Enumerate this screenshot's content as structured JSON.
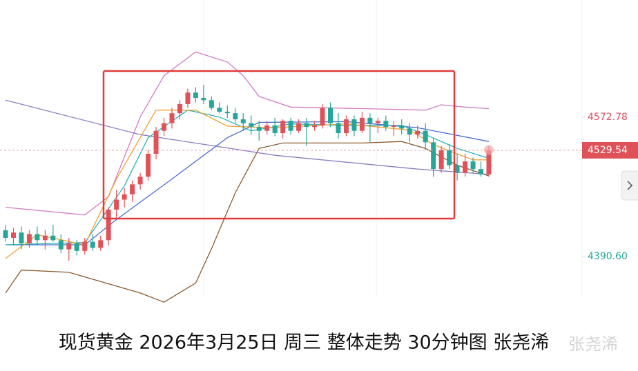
{
  "chart_data": {
    "type": "candlestick",
    "caption": "现货黄金 2026年3月25日 周三 整体走势 30分钟图 张尧浠",
    "watermark": "张尧浠",
    "up_color": "#e0525a",
    "down_color": "#26a69a",
    "ylim": [
      4241,
      4726
    ],
    "yticks": [
      4572.78,
      {
        "value": 4390.6,
        "label": "4390.60"
      }
    ],
    "ytick_colors": [
      "#e0525a",
      "#26a69a"
    ],
    "last_price": 4529.54,
    "open": [
      4425,
      4415,
      4422,
      4408,
      4420,
      4412,
      4418,
      4412,
      4400,
      4408,
      4398,
      4410,
      4402,
      4412,
      4452,
      4465,
      4472,
      4485,
      4495,
      4525,
      4555,
      4565,
      4578,
      4590,
      4605,
      4598,
      4595,
      4585,
      4580,
      4578,
      4570,
      4565,
      4560,
      4555,
      4562,
      4552,
      4568,
      4555,
      4565,
      4560,
      4562,
      4585,
      4565,
      4552,
      4570,
      4555,
      4572,
      4565,
      4568,
      4560,
      4562,
      4558,
      4550,
      4555,
      4540,
      4505,
      4530,
      4510,
      4500,
      4515,
      4505,
      4498
    ],
    "high": [
      4432,
      4428,
      4430,
      4425,
      4430,
      4425,
      4432,
      4420,
      4415,
      4412,
      4415,
      4420,
      4418,
      4455,
      4478,
      4480,
      4490,
      4500,
      4530,
      4560,
      4572,
      4585,
      4595,
      4610,
      4612,
      4615,
      4600,
      4592,
      4588,
      4585,
      4578,
      4575,
      4568,
      4568,
      4572,
      4570,
      4572,
      4570,
      4572,
      4568,
      4590,
      4592,
      4578,
      4575,
      4575,
      4580,
      4578,
      4572,
      4575,
      4568,
      4570,
      4565,
      4562,
      4565,
      4545,
      4535,
      4538,
      4525,
      4525,
      4520,
      4515,
      4535
    ],
    "low": [
      4410,
      4405,
      4400,
      4402,
      4405,
      4400,
      4410,
      4395,
      4385,
      4392,
      4393,
      4398,
      4398,
      4405,
      4440,
      4455,
      4462,
      4478,
      4490,
      4518,
      4548,
      4558,
      4570,
      4585,
      4592,
      4590,
      4582,
      4578,
      4572,
      4565,
      4555,
      4550,
      4542,
      4550,
      4548,
      4545,
      4550,
      4552,
      4535,
      4555,
      4558,
      4560,
      4545,
      4548,
      4548,
      4552,
      4540,
      4552,
      4555,
      4548,
      4550,
      4540,
      4545,
      4530,
      4495,
      4500,
      4505,
      4490,
      4495,
      4500,
      4495,
      4495
    ],
    "close": [
      4415,
      4422,
      4408,
      4420,
      4412,
      4418,
      4412,
      4400,
      4408,
      4398,
      4410,
      4402,
      4412,
      4452,
      4465,
      4472,
      4485,
      4495,
      4525,
      4555,
      4565,
      4578,
      4590,
      4605,
      4598,
      4595,
      4585,
      4580,
      4578,
      4570,
      4565,
      4560,
      4555,
      4562,
      4552,
      4568,
      4555,
      4565,
      4560,
      4562,
      4585,
      4565,
      4552,
      4570,
      4555,
      4572,
      4565,
      4568,
      4560,
      4562,
      4558,
      4550,
      4555,
      4540,
      4505,
      4530,
      4510,
      4500,
      4515,
      4505,
      4498,
      4530
    ],
    "series": [
      {
        "color": "#d27ac8",
        "x": [
          0,
          10,
          13,
          17,
          20,
          24,
          28,
          30,
          32,
          36,
          45,
          53,
          55,
          58,
          61
        ],
        "values": [
          4455,
          4445,
          4469,
          4573,
          4627,
          4658,
          4645,
          4627,
          4600,
          4586,
          4584,
          4582,
          4589,
          4586,
          4584
        ]
      },
      {
        "color": "#8b5a2b",
        "x": [
          0,
          2,
          8,
          17,
          20,
          24,
          26,
          29,
          32,
          35,
          45,
          50,
          53,
          57,
          61
        ],
        "values": [
          4343,
          4373,
          4370,
          4343,
          4331,
          4356,
          4401,
          4474,
          4532,
          4539,
          4539,
          4541,
          4532,
          4510,
          4496
        ]
      },
      {
        "color": "#8e7cc3",
        "x": [
          0,
          17,
          34,
          52,
          61
        ],
        "values": [
          4595,
          4550,
          4523,
          4505,
          4498
        ]
      },
      {
        "color": "#4a6fd1",
        "x": [
          0,
          10,
          14,
          21,
          28,
          32,
          43,
          52,
          61
        ],
        "values": [
          4406,
          4406,
          4439,
          4492,
          4546,
          4566,
          4567,
          4559,
          4541
        ]
      },
      {
        "color": "#29b3b3",
        "x": [
          0,
          10,
          15,
          18,
          23,
          27,
          31,
          36,
          43,
          50,
          53,
          57,
          61
        ],
        "values": [
          4406,
          4409,
          4483,
          4546,
          4582,
          4573,
          4555,
          4564,
          4562,
          4562,
          4550,
          4532,
          4519
        ]
      },
      {
        "color": "#f0a030",
        "x": [
          0,
          4,
          10,
          14,
          19,
          24,
          28,
          34,
          43,
          51,
          54,
          59,
          61
        ],
        "values": [
          4388,
          4419,
          4406,
          4492,
          4582,
          4582,
          4561,
          4559,
          4564,
          4556,
          4537,
          4517,
          4517
        ]
      }
    ]
  }
}
